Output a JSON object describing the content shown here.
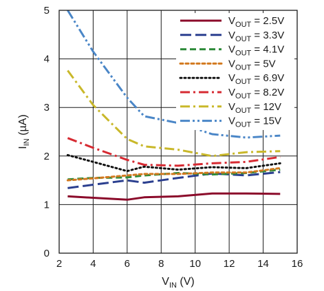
{
  "chart_data": {
    "type": "line",
    "xlabel": "V",
    "xlabel_sub": "IN",
    "xlabel_unit": " (V)",
    "ylabel": "I",
    "ylabel_sub": "IN",
    "ylabel_unit": " (µA)",
    "xlim": [
      2,
      16
    ],
    "ylim": [
      0,
      5
    ],
    "xticks": [
      "2",
      "4",
      "6",
      "8",
      "10",
      "12",
      "14",
      "16"
    ],
    "yticks": [
      "0",
      "1",
      "2",
      "3",
      "4",
      "5"
    ],
    "grid": true,
    "legend_position": "top-right",
    "series": [
      {
        "name": "V",
        "sub": "OUT",
        "suffix": " = 2.5V",
        "color": "#8b0a2a",
        "dash": "solid",
        "x": [
          2.5,
          4,
          6,
          7,
          9,
          11,
          13,
          15
        ],
        "y": [
          1.17,
          1.14,
          1.1,
          1.15,
          1.17,
          1.23,
          1.23,
          1.22
        ]
      },
      {
        "name": "V",
        "sub": "OUT",
        "suffix": " = 3.3V",
        "color": "#2b3f8f",
        "dash": "long-dash",
        "x": [
          2.5,
          4,
          6,
          7,
          9,
          11,
          13,
          15
        ],
        "y": [
          1.34,
          1.41,
          1.5,
          1.45,
          1.55,
          1.64,
          1.6,
          1.67
        ]
      },
      {
        "name": "V",
        "sub": "OUT",
        "suffix": " = 4.1V",
        "color": "#2e8b3a",
        "dash": "dash",
        "x": [
          2.5,
          4,
          6,
          7,
          9,
          11,
          13,
          15
        ],
        "y": [
          1.52,
          1.55,
          1.56,
          1.6,
          1.65,
          1.62,
          1.65,
          1.72
        ]
      },
      {
        "name": "V",
        "sub": "OUT",
        "suffix": " = 5V",
        "color": "#d2791f",
        "dash": "dot-short",
        "x": [
          2.5,
          4,
          6,
          7,
          9,
          11,
          13,
          15
        ],
        "y": [
          1.5,
          1.54,
          1.6,
          1.63,
          1.63,
          1.66,
          1.66,
          1.75
        ]
      },
      {
        "name": "V",
        "sub": "OUT",
        "suffix": " = 6.9V",
        "color": "#111111",
        "dash": "dot",
        "x": [
          2.5,
          4,
          6,
          7,
          9,
          11,
          13,
          15
        ],
        "y": [
          2.02,
          1.88,
          1.69,
          1.78,
          1.72,
          1.77,
          1.75,
          1.85
        ]
      },
      {
        "name": "V",
        "sub": "OUT",
        "suffix": " = 8.2V",
        "color": "#d62a32",
        "dash": "dash-dot",
        "x": [
          2.5,
          4,
          6,
          7,
          9,
          11,
          13,
          15
        ],
        "y": [
          2.37,
          2.17,
          1.92,
          1.82,
          1.8,
          1.85,
          1.88,
          1.98
        ]
      },
      {
        "name": "V",
        "sub": "OUT",
        "suffix": " = 12V",
        "color": "#c9b82a",
        "dash": "dash-dot",
        "x": [
          2.5,
          4,
          6,
          7,
          9,
          11,
          13,
          15
        ],
        "y": [
          3.76,
          3.05,
          2.35,
          2.2,
          2.13,
          2.0,
          2.08,
          2.1
        ]
      },
      {
        "name": "V",
        "sub": "OUT",
        "suffix": " = 15V",
        "color": "#4a86c7",
        "dash": "dash-dot-dot",
        "x": [
          2.5,
          4,
          6,
          7,
          9,
          11,
          13,
          15
        ],
        "y": [
          5.0,
          4.15,
          3.2,
          2.82,
          2.68,
          2.45,
          2.38,
          2.42
        ]
      }
    ]
  }
}
